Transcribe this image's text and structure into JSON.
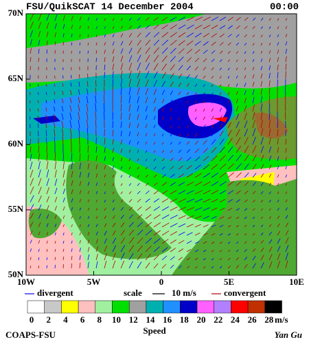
{
  "header": {
    "title": "FSU/QuikSCAT 14 December 2004",
    "time": "00:00"
  },
  "map": {
    "lat_labels": [
      "70N",
      "65N",
      "60N",
      "55N",
      "50N"
    ],
    "lon_labels": [
      "10W",
      "5W",
      "0",
      "5E",
      "10E"
    ]
  },
  "legend": {
    "divergent": "divergent",
    "scale": "scale",
    "scale_value": "10 m/s",
    "convergent": "convergent",
    "divergent_color": "#0000ff",
    "convergent_color": "#b00000"
  },
  "colorbar": {
    "ticks": [
      "0",
      "2",
      "4",
      "6",
      "8",
      "10",
      "12",
      "14",
      "16",
      "18",
      "20",
      "22",
      "24",
      "26",
      "28"
    ],
    "unit": "m/s",
    "label": "Speed",
    "colors": [
      "#ffffff",
      "#c8c8c8",
      "#ffff00",
      "#ffc0c0",
      "#a0f0a0",
      "#00e000",
      "#a0a0a0",
      "#00b0b0",
      "#2090ff",
      "#0000c8",
      "#ff60ff",
      "#b080ff",
      "#ff0000",
      "#c03000",
      "#000000"
    ]
  },
  "footer": {
    "left": "COAPS-FSU",
    "right": "Yan Gu"
  }
}
